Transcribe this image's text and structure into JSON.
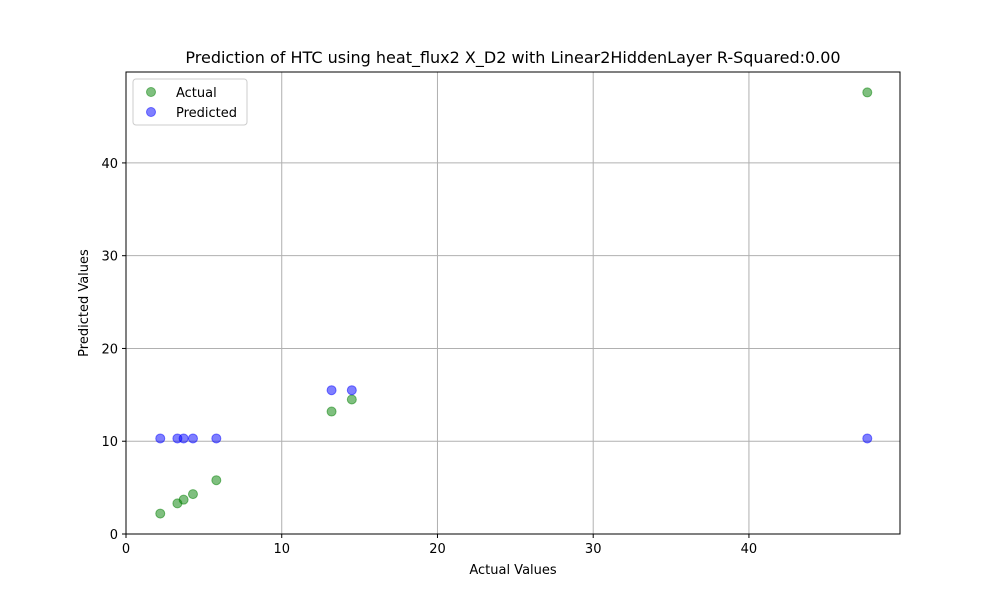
{
  "chart_data": {
    "type": "scatter",
    "title": "Prediction of HTC using heat_flux2 X_D2 with Linear2HiddenLayer  R-Squared:0.00",
    "xlabel": "Actual Values",
    "ylabel": "Predicted Values",
    "xlim": [
      0,
      49.7
    ],
    "ylim": [
      0,
      49.8
    ],
    "xticks": [
      0,
      10,
      20,
      30,
      40
    ],
    "yticks": [
      0,
      10,
      20,
      30,
      40
    ],
    "grid": true,
    "legend_position": "top-left",
    "series": [
      {
        "name": "Actual",
        "color": "#008000",
        "points": [
          {
            "x": 2.2,
            "y": 2.2
          },
          {
            "x": 3.3,
            "y": 3.3
          },
          {
            "x": 3.7,
            "y": 3.7
          },
          {
            "x": 4.3,
            "y": 4.3
          },
          {
            "x": 5.8,
            "y": 5.8
          },
          {
            "x": 13.2,
            "y": 13.2
          },
          {
            "x": 14.5,
            "y": 14.5
          },
          {
            "x": 47.6,
            "y": 47.6
          }
        ]
      },
      {
        "name": "Predicted",
        "color": "#0000ff",
        "points": [
          {
            "x": 2.2,
            "y": 10.3
          },
          {
            "x": 3.3,
            "y": 10.3
          },
          {
            "x": 3.7,
            "y": 10.3
          },
          {
            "x": 4.3,
            "y": 10.3
          },
          {
            "x": 5.8,
            "y": 10.3
          },
          {
            "x": 13.2,
            "y": 15.5
          },
          {
            "x": 14.5,
            "y": 15.5
          },
          {
            "x": 47.6,
            "y": 10.3
          }
        ]
      }
    ]
  }
}
